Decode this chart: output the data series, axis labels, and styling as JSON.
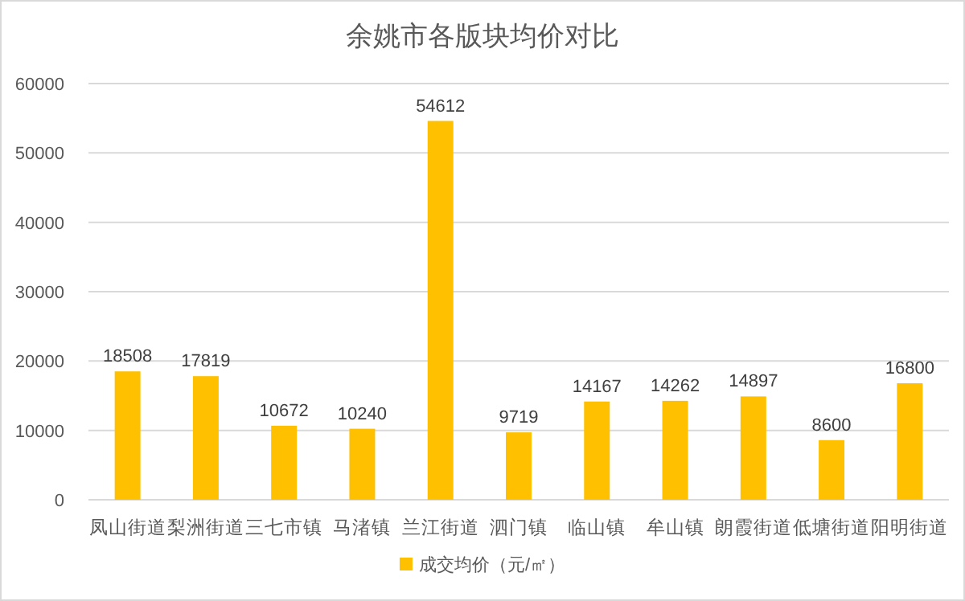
{
  "chart_data": {
    "type": "bar",
    "title": "余姚市各版块均价对比",
    "categories": [
      "凤山街道",
      "梨洲街道",
      "三七市镇",
      "马渚镇",
      "兰江街道",
      "泗门镇",
      "临山镇",
      "牟山镇",
      "朗霞街道",
      "低塘街道",
      "阳明街道"
    ],
    "series": [
      {
        "name": "成交均价（元/㎡）",
        "color": "#ffc000",
        "values": [
          18508,
          17819,
          10672,
          10240,
          54612,
          9719,
          14167,
          14262,
          14897,
          8600,
          16800
        ]
      }
    ],
    "ylim": [
      0,
      60000
    ],
    "yticks": [
      0,
      10000,
      20000,
      30000,
      40000,
      50000,
      60000
    ],
    "grid": "y",
    "legend": "bottom",
    "data_labels": true
  }
}
